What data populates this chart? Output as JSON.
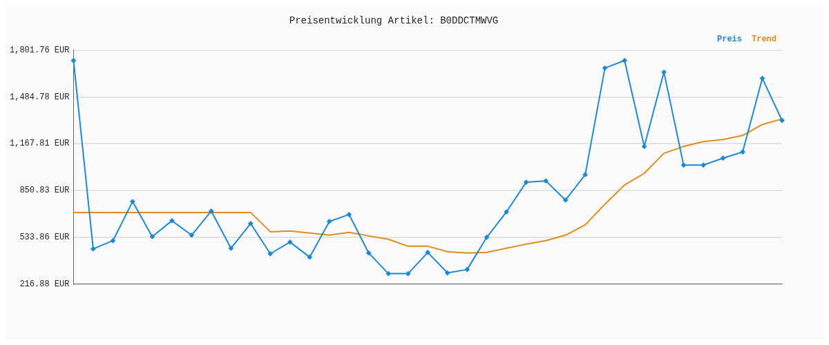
{
  "chart_data": {
    "type": "line",
    "title": "Preisentwicklung Artikel: B0DDCTMWVG",
    "categories": [
      null,
      null,
      null,
      null,
      null,
      null,
      null,
      null,
      null,
      null,
      null,
      null,
      null,
      null,
      null,
      null,
      null,
      null,
      null,
      null,
      null,
      null,
      null,
      null,
      null,
      null,
      null,
      null,
      null,
      null,
      null,
      null,
      null,
      null,
      null,
      null,
      null
    ],
    "series": [
      {
        "name": "Preis",
        "color": "#1f88d0",
        "marker": "diamond",
        "values": [
          1732,
          455,
          510,
          776,
          538,
          646,
          548,
          711,
          459,
          627,
          422,
          501,
          399,
          641,
          688,
          427,
          287,
          287,
          431,
          292,
          315,
          534,
          706,
          907,
          916,
          786,
          958,
          1681,
          1732,
          1149,
          1653,
          1023,
          1023,
          1070,
          1112,
          1611,
          1326
        ]
      },
      {
        "name": "Trend",
        "color": "#e08a20",
        "marker": "none",
        "values": [
          702,
          702,
          702,
          702,
          702,
          702,
          702,
          702,
          702,
          702,
          571,
          576,
          562,
          548,
          567,
          543,
          520,
          473,
          473,
          436,
          427,
          431,
          459,
          487,
          511,
          548,
          618,
          758,
          888,
          967,
          1103,
          1149,
          1182,
          1196,
          1224,
          1298,
          1336
        ]
      }
    ],
    "ylim": [
      216.88,
      1801.76
    ],
    "yticks": [
      {
        "value": 216.88,
        "label": "216.88 EUR"
      },
      {
        "value": 533.86,
        "label": "533.86 EUR"
      },
      {
        "value": 850.83,
        "label": "850.83 EUR"
      },
      {
        "value": 1167.81,
        "label": "1,167.81 EUR"
      },
      {
        "value": 1484.78,
        "label": "1,484.78 EUR"
      },
      {
        "value": 1801.76,
        "label": "1,801.76 EUR"
      }
    ],
    "grid": "y",
    "legend": "top right",
    "line_style": "solid"
  }
}
